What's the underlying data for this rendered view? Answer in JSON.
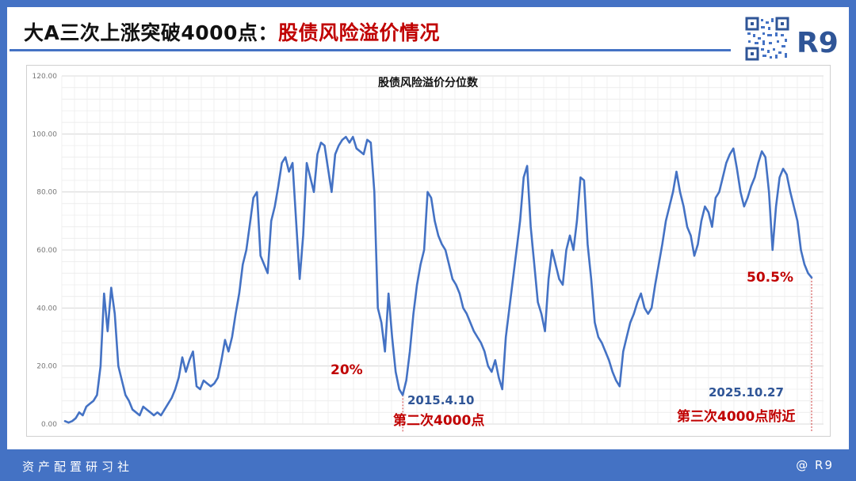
{
  "header": {
    "title_main": "大A三次上涨突破4000点：",
    "title_highlight": "股债风险溢价情况",
    "logo": "R9"
  },
  "footer": {
    "left": "资产配置研习社",
    "right": "@ R9"
  },
  "colors": {
    "accent": "#4472c4",
    "line": "#4472c4",
    "highlight": "#c00000",
    "date_label": "#2f5597"
  },
  "chart_data": {
    "type": "line",
    "title": "股债风险溢价分位数",
    "xlabel": "",
    "ylabel": "",
    "ylim": [
      0,
      120
    ],
    "yticks": [
      "0.00",
      "20.00",
      "40.00",
      "60.00",
      "80.00",
      "100.00",
      "120.00"
    ],
    "grid": true,
    "series": [
      {
        "values": [
          1,
          0.5,
          1,
          2,
          4,
          3,
          6,
          7,
          8,
          10,
          20,
          45,
          32,
          47,
          38,
          20,
          15,
          10,
          8,
          5,
          4,
          3,
          6,
          5,
          4,
          3,
          4,
          3,
          5,
          7,
          9,
          12,
          16,
          23,
          18,
          22,
          25,
          13,
          12,
          15,
          14,
          13,
          14,
          16,
          22,
          29,
          25,
          30,
          38,
          45,
          55,
          60,
          69,
          78,
          80,
          58,
          55,
          52,
          70,
          75,
          82,
          90,
          92,
          87,
          90,
          70,
          50,
          65,
          90,
          85,
          80,
          93,
          97,
          96,
          88,
          80,
          93,
          96,
          98,
          99,
          97,
          99,
          95,
          94,
          93,
          98,
          97,
          80,
          40,
          35,
          25,
          45,
          30,
          18,
          12,
          10,
          15,
          25,
          38,
          48,
          55,
          60,
          80,
          78,
          70,
          65,
          62,
          60,
          55,
          50,
          48,
          45,
          40,
          38,
          35,
          32,
          30,
          28,
          25,
          20,
          18,
          22,
          16,
          12,
          30,
          40,
          50,
          60,
          70,
          85,
          89,
          68,
          55,
          42,
          38,
          32,
          50,
          60,
          55,
          50,
          48,
          60,
          65,
          60,
          70,
          85,
          84,
          62,
          50,
          35,
          30,
          28,
          25,
          22,
          18,
          15,
          13,
          25,
          30,
          35,
          38,
          42,
          45,
          40,
          38,
          40,
          48,
          55,
          62,
          70,
          75,
          80,
          87,
          80,
          75,
          68,
          65,
          58,
          62,
          70,
          75,
          73,
          68,
          78,
          80,
          85,
          90,
          93,
          95,
          88,
          80,
          75,
          78,
          82,
          85,
          90,
          94,
          92,
          80,
          60,
          75,
          85,
          88,
          86,
          80,
          75,
          70,
          60,
          55,
          52,
          50.5
        ]
      }
    ],
    "annotations": [
      {
        "text": "20%",
        "type": "value"
      },
      {
        "text": "2015.4.10",
        "type": "date"
      },
      {
        "text": "第二次4000点",
        "type": "event"
      },
      {
        "text": "50.5%",
        "type": "value"
      },
      {
        "text": "2025.10.27",
        "type": "date"
      },
      {
        "text": "第三次4000点附近",
        "type": "event"
      }
    ]
  }
}
